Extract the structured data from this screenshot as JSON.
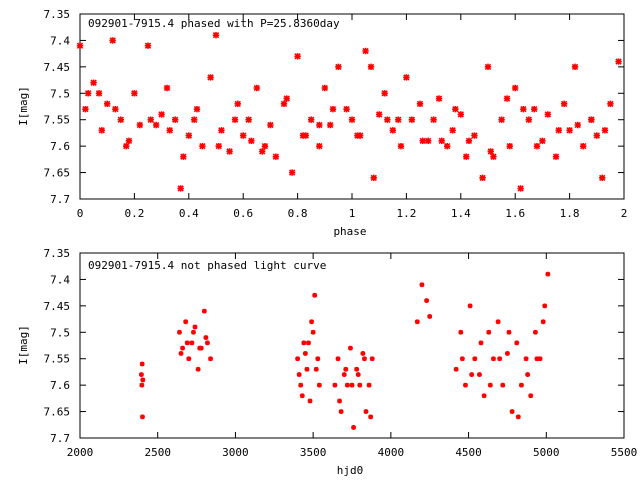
{
  "charts": [
    {
      "type": "scatter",
      "title": "092901-7915.4 phased with P=25.8360day",
      "xlabel": "phase",
      "ylabel": "I[mag]",
      "xlim": [
        0,
        2
      ],
      "ylim": [
        7.35,
        7.7
      ],
      "y_inverted": true,
      "xticks": [
        "0",
        "0.2",
        "0.4",
        "0.6",
        "0.8",
        "1",
        "1.2",
        "1.4",
        "1.6",
        "1.8",
        "2"
      ],
      "xtick_values": [
        0,
        0.2,
        0.4,
        0.6,
        0.8,
        1.0,
        1.2,
        1.4,
        1.6,
        1.8,
        2.0
      ],
      "yticks": [
        "7.35",
        "7.4",
        "7.45",
        "7.5",
        "7.55",
        "7.6",
        "7.65",
        "7.7"
      ],
      "ytick_values": [
        7.35,
        7.4,
        7.45,
        7.5,
        7.55,
        7.6,
        7.65,
        7.7
      ],
      "marker_color": "#ff0000",
      "x": [
        0.0,
        0.02,
        0.05,
        0.08,
        0.1,
        0.12,
        0.15,
        0.18,
        0.2,
        0.22,
        0.25,
        0.28,
        0.3,
        0.32,
        0.35,
        0.37,
        0.4,
        0.42,
        0.45,
        0.48,
        0.5,
        0.52,
        0.55,
        0.58,
        0.6,
        0.62,
        0.65,
        0.68,
        0.7,
        0.72,
        0.75,
        0.78,
        0.8,
        0.82,
        0.85,
        0.88,
        0.9,
        0.92,
        0.95,
        0.98,
        1.0,
        1.02,
        1.05,
        1.08,
        1.1,
        1.12,
        1.15,
        1.18,
        1.2,
        1.22,
        1.25,
        1.28,
        1.3,
        1.32,
        1.35,
        1.37,
        1.4,
        1.42,
        1.45,
        1.48,
        1.5,
        1.52,
        1.55,
        1.58,
        1.6,
        1.62,
        1.65,
        1.68,
        1.7,
        1.72,
        1.75,
        1.78,
        1.8,
        1.82,
        1.85,
        1.88,
        1.9,
        1.92,
        1.95,
        1.98,
        0.03,
        0.13,
        0.26,
        0.38,
        0.51,
        0.63,
        0.76,
        0.88,
        1.03,
        1.13,
        1.26,
        1.38,
        1.51,
        1.63,
        1.76,
        1.88,
        0.07,
        0.33,
        0.57,
        0.83,
        1.07,
        1.33,
        1.57,
        1.83,
        0.17,
        0.43,
        0.67,
        0.93,
        1.17,
        1.43,
        1.67,
        1.93
      ],
      "y": [
        7.41,
        7.53,
        7.48,
        7.57,
        7.52,
        7.4,
        7.55,
        7.59,
        7.5,
        7.56,
        7.41,
        7.56,
        7.54,
        7.49,
        7.55,
        7.68,
        7.58,
        7.55,
        7.6,
        7.47,
        7.39,
        7.57,
        7.61,
        7.52,
        7.58,
        7.55,
        7.49,
        7.6,
        7.56,
        7.62,
        7.52,
        7.65,
        7.43,
        7.58,
        7.55,
        7.6,
        7.49,
        7.56,
        7.45,
        7.53,
        7.55,
        7.58,
        7.42,
        7.66,
        7.54,
        7.5,
        7.57,
        7.6,
        7.47,
        7.55,
        7.52,
        7.59,
        7.55,
        7.51,
        7.6,
        7.57,
        7.54,
        7.62,
        7.58,
        7.66,
        7.45,
        7.62,
        7.55,
        7.6,
        7.49,
        7.68,
        7.55,
        7.6,
        7.59,
        7.54,
        7.62,
        7.52,
        7.57,
        7.45,
        7.6,
        7.55,
        7.58,
        7.66,
        7.52,
        7.44,
        7.5,
        7.53,
        7.55,
        7.62,
        7.6,
        7.59,
        7.51,
        7.56,
        7.58,
        7.55,
        7.59,
        7.53,
        7.61,
        7.53,
        7.57,
        7.55,
        7.5,
        7.57,
        7.55,
        7.58,
        7.45,
        7.59,
        7.51,
        7.56,
        7.6,
        7.53,
        7.61,
        7.53,
        7.55,
        7.59,
        7.53,
        7.57
      ]
    },
    {
      "type": "scatter",
      "title": "092901-7915.4 not phased light curve",
      "xlabel": "hjd0",
      "ylabel": "I[mag]",
      "xlim": [
        2000,
        5500
      ],
      "ylim": [
        7.35,
        7.7
      ],
      "y_inverted": true,
      "xticks": [
        "2000",
        "2500",
        "3000",
        "3500",
        "4000",
        "4500",
        "5000",
        "5500"
      ],
      "xtick_values": [
        2000,
        2500,
        3000,
        3500,
        4000,
        4500,
        5000,
        5500
      ],
      "yticks": [
        "7.35",
        "7.4",
        "7.45",
        "7.5",
        "7.55",
        "7.6",
        "7.65",
        "7.7"
      ],
      "ytick_values": [
        7.35,
        7.4,
        7.45,
        7.5,
        7.55,
        7.6,
        7.65,
        7.7
      ],
      "marker_color": "#ff0000",
      "x": [
        2395,
        2398,
        2400,
        2402,
        2404,
        2640,
        2660,
        2680,
        2700,
        2720,
        2740,
        2760,
        2780,
        2800,
        2820,
        2840,
        2650,
        2690,
        2730,
        2770,
        2810,
        3400,
        3420,
        3440,
        3460,
        3480,
        3500,
        3520,
        3540,
        3410,
        3450,
        3490,
        3530,
        3430,
        3470,
        3510,
        3640,
        3660,
        3680,
        3700,
        3720,
        3740,
        3760,
        3780,
        3800,
        3820,
        3840,
        3860,
        3880,
        3670,
        3710,
        3750,
        3790,
        3830,
        3870,
        4170,
        4200,
        4230,
        4250,
        4420,
        4450,
        4480,
        4510,
        4540,
        4570,
        4600,
        4630,
        4660,
        4690,
        4720,
        4750,
        4780,
        4810,
        4840,
        4870,
        4900,
        4930,
        4960,
        4990,
        5010,
        4460,
        4520,
        4580,
        4640,
        4700,
        4760,
        4820,
        4880,
        4940,
        4980
      ],
      "y": [
        7.58,
        7.6,
        7.56,
        7.66,
        7.59,
        7.5,
        7.53,
        7.48,
        7.55,
        7.52,
        7.49,
        7.57,
        7.53,
        7.46,
        7.52,
        7.55,
        7.54,
        7.52,
        7.5,
        7.53,
        7.51,
        7.55,
        7.6,
        7.52,
        7.57,
        7.63,
        7.5,
        7.57,
        7.6,
        7.58,
        7.54,
        7.48,
        7.55,
        7.62,
        7.52,
        7.43,
        7.6,
        7.55,
        7.65,
        7.58,
        7.6,
        7.53,
        7.68,
        7.57,
        7.6,
        7.54,
        7.65,
        7.6,
        7.55,
        7.63,
        7.57,
        7.6,
        7.58,
        7.55,
        7.66,
        7.48,
        7.41,
        7.44,
        7.47,
        7.57,
        7.5,
        7.6,
        7.45,
        7.55,
        7.58,
        7.62,
        7.5,
        7.55,
        7.48,
        7.6,
        7.54,
        7.65,
        7.52,
        7.6,
        7.55,
        7.62,
        7.5,
        7.55,
        7.45,
        7.39,
        7.55,
        7.58,
        7.52,
        7.6,
        7.55,
        7.5,
        7.66,
        7.58,
        7.55,
        7.48
      ]
    }
  ]
}
